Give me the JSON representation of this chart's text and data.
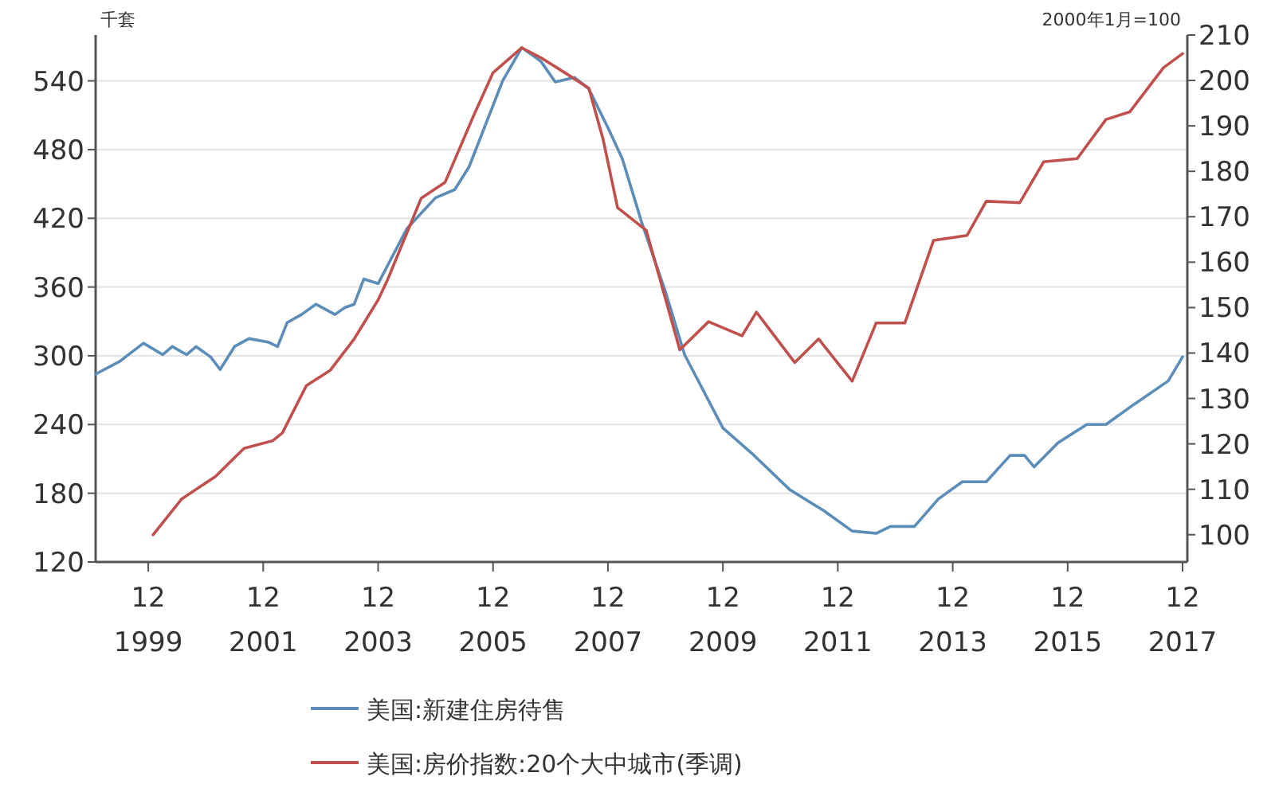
{
  "chart_data": {
    "type": "line",
    "ylabel": "千套",
    "y2label": "2000年1月=100",
    "xlim": [
      "1999-01",
      "2018-01"
    ],
    "xticks": [
      {
        "value": "1999-12",
        "label": "12\n1999"
      },
      {
        "value": "2001-12",
        "label": "12\n2001"
      },
      {
        "value": "2003-12",
        "label": "12\n2003"
      },
      {
        "value": "2005-12",
        "label": "12\n2005"
      },
      {
        "value": "2007-12",
        "label": "12\n2007"
      },
      {
        "value": "2009-12",
        "label": "12\n2009"
      },
      {
        "value": "2011-12",
        "label": "12\n2011"
      },
      {
        "value": "2013-12",
        "label": "12\n2013"
      },
      {
        "value": "2015-12",
        "label": "12\n2015"
      },
      {
        "value": "2017-12",
        "label": "12\n2017"
      }
    ],
    "ylim": [
      120,
      580
    ],
    "yticks": [
      120,
      180,
      240,
      300,
      360,
      420,
      480,
      540
    ],
    "y2lim": [
      94,
      210
    ],
    "y2ticks": [
      100,
      110,
      120,
      130,
      140,
      150,
      160,
      170,
      180,
      190,
      200,
      210
    ],
    "grid": "y",
    "legend": "bottom",
    "series": [
      {
        "name": "美国:新建住房待售",
        "color": "#5b8db8",
        "x": [
          "1999-01",
          "1999-06",
          "1999-11",
          "2000-03",
          "2000-05",
          "2000-08",
          "2000-10",
          "2001-01",
          "2001-03",
          "2001-06",
          "2001-09",
          "2002-01",
          "2002-03",
          "2002-05",
          "2002-08",
          "2002-11",
          "2003-03",
          "2003-05",
          "2003-07",
          "2003-09",
          "2003-12",
          "2004-02",
          "2004-06",
          "2004-12",
          "2005-04",
          "2005-07",
          "2006-02",
          "2006-06",
          "2006-10",
          "2007-01",
          "2007-05",
          "2007-08",
          "2007-12",
          "2008-03",
          "2008-07",
          "2008-12",
          "2009-04",
          "2009-12",
          "2010-06",
          "2011-02",
          "2011-09",
          "2012-03",
          "2012-08",
          "2012-11",
          "2013-04",
          "2013-09",
          "2014-02",
          "2014-07",
          "2014-12",
          "2015-03",
          "2015-05",
          "2015-10",
          "2016-04",
          "2016-08",
          "2017-02",
          "2017-09",
          "2017-12"
        ],
        "values": [
          284,
          295,
          311,
          301,
          308,
          301,
          308,
          299,
          288,
          308,
          315,
          312,
          308,
          329,
          336,
          345,
          336,
          342,
          345,
          367,
          363,
          379,
          411,
          438,
          445,
          465,
          540,
          569,
          557,
          539,
          543,
          533,
          499,
          472,
          417,
          356,
          301,
          237,
          215,
          183,
          165,
          147,
          145,
          151,
          151,
          175,
          190,
          190,
          213,
          213,
          203,
          224,
          240,
          240,
          258,
          278,
          299
        ]
      },
      {
        "name": "美国:房价指数:20个大中城市(季调)",
        "color": "#c0504d",
        "axis": "y2",
        "x": [
          "2000-01",
          "2000-07",
          "2001-02",
          "2001-08",
          "2002-02",
          "2002-04",
          "2002-09",
          "2003-02",
          "2003-07",
          "2003-12",
          "2004-02",
          "2004-09",
          "2005-02",
          "2005-08",
          "2005-12",
          "2006-06",
          "2006-10",
          "2007-03",
          "2007-08",
          "2007-11",
          "2008-02",
          "2008-08",
          "2009-03",
          "2009-09",
          "2010-04",
          "2010-07",
          "2011-03",
          "2011-08",
          "2012-03",
          "2012-08",
          "2013-02",
          "2013-08",
          "2014-03",
          "2014-07",
          "2015-02",
          "2015-07",
          "2016-02",
          "2016-08",
          "2017-01",
          "2017-08",
          "2017-12"
        ],
        "values": [
          100,
          107.9,
          112.8,
          119,
          120.7,
          122.4,
          132.8,
          136.2,
          143.1,
          151.7,
          156.2,
          174.1,
          177.6,
          192.4,
          201.7,
          207.2,
          205,
          201.7,
          198.3,
          187,
          172,
          167,
          140.7,
          146.9,
          143.8,
          149,
          137.9,
          143.1,
          133.8,
          146.6,
          146.6,
          164.8,
          165.9,
          173.4,
          173.1,
          182.1,
          182.8,
          191.4,
          193.1,
          202.8,
          205.9
        ]
      }
    ]
  }
}
